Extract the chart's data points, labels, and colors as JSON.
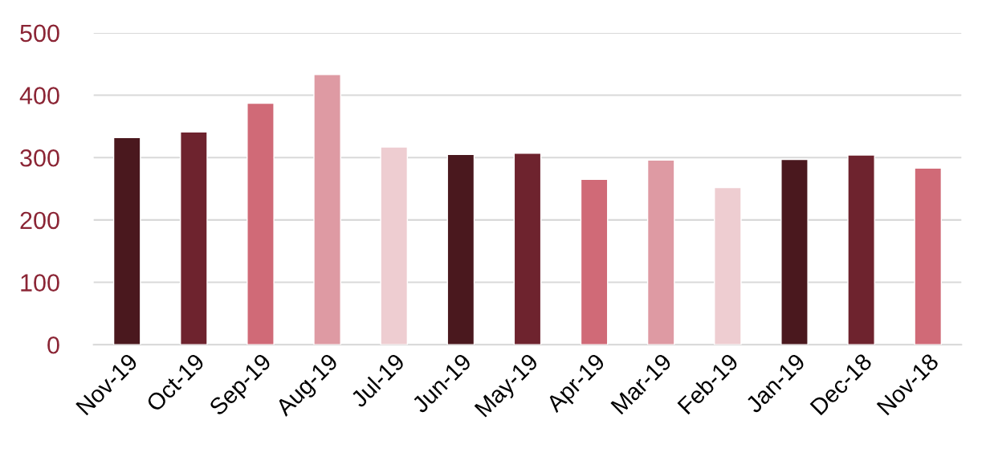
{
  "chart_data": {
    "type": "bar",
    "categories": [
      "Nov-19",
      "Oct-19",
      "Sep-19",
      "Aug-19",
      "Jul-19",
      "Jun-19",
      "May-19",
      "Apr-19",
      "Mar-19",
      "Feb-19",
      "Jan-19",
      "Dec-18",
      "Nov-18"
    ],
    "values": [
      332,
      341,
      387,
      433,
      317,
      305,
      307,
      265,
      296,
      252,
      297,
      304,
      283
    ],
    "colors": [
      "#4a181e",
      "#6e232e",
      "#d06a77",
      "#de9aa3",
      "#eecdd1",
      "#4a181e",
      "#6e232e",
      "#d06a77",
      "#de9aa3",
      "#eecdd1",
      "#4a181e",
      "#6e232e",
      "#d06a77"
    ],
    "ylim": [
      0,
      500
    ],
    "yticks": [
      0,
      100,
      200,
      300,
      400,
      500
    ],
    "grid": "y",
    "legend": false
  }
}
